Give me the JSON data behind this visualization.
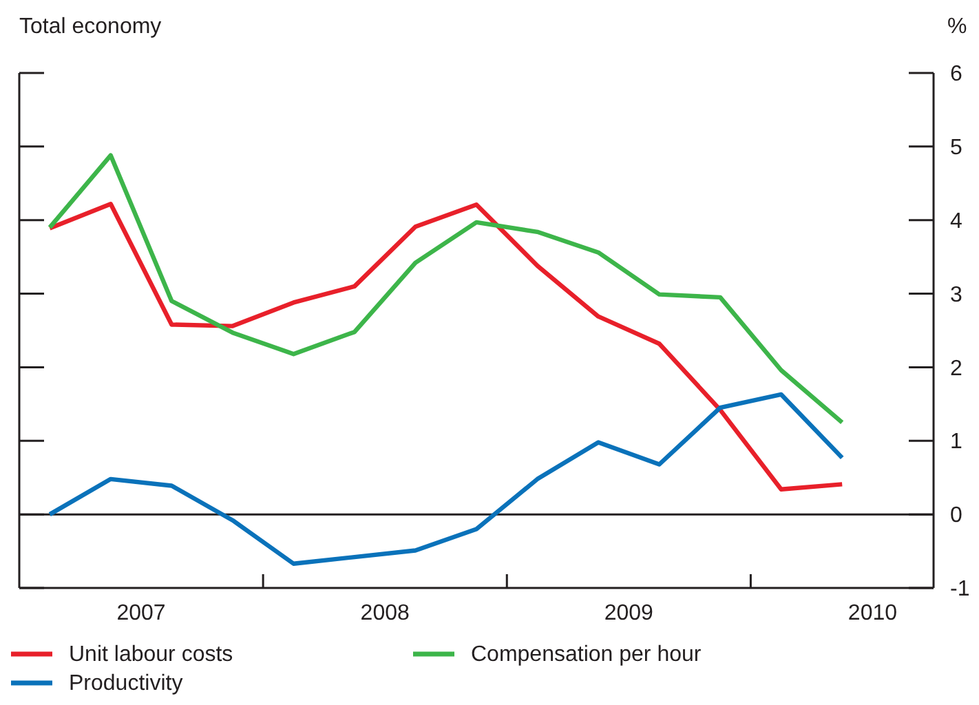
{
  "chart_data": {
    "type": "line",
    "title": "Total economy",
    "ylabel": "%",
    "x": [
      2007.125,
      2007.375,
      2007.625,
      2007.875,
      2008.125,
      2008.375,
      2008.625,
      2008.875,
      2009.125,
      2009.375,
      2009.625,
      2009.875,
      2010.125,
      2010.375
    ],
    "series": [
      {
        "name": "Unit labour costs",
        "color": "#e8202a",
        "values": [
          3.89,
          4.22,
          2.58,
          2.56,
          2.88,
          3.1,
          3.91,
          4.21,
          3.38,
          2.69,
          2.32,
          1.42,
          0.34,
          0.41
        ]
      },
      {
        "name": "Compensation per hour",
        "color": "#3db54a",
        "values": [
          3.9,
          4.88,
          2.9,
          2.47,
          2.18,
          2.48,
          3.42,
          3.97,
          3.84,
          3.56,
          2.99,
          2.95,
          1.96,
          1.25
        ]
      },
      {
        "name": "Productivity",
        "color": "#0a72ba",
        "values": [
          0,
          0.48,
          0.39,
          -0.08,
          -0.67,
          -0.58,
          -0.49,
          -0.2,
          0.48,
          0.98,
          0.68,
          1.45,
          1.63,
          0.77
        ]
      }
    ],
    "xlim": [
      2007,
      2010.75
    ],
    "xticks": [
      {
        "value": 2007.5,
        "label": "2007"
      },
      {
        "value": 2008,
        "label": null
      },
      {
        "value": 2008.5,
        "label": "2008"
      },
      {
        "value": 2009,
        "label": null
      },
      {
        "value": 2009.5,
        "label": "2009"
      },
      {
        "value": 2010,
        "label": null
      },
      {
        "value": 2010.5,
        "label": "2010"
      }
    ],
    "ylim": [
      -1,
      6
    ],
    "yticks": [
      -1,
      0,
      1,
      2,
      3,
      4,
      5,
      6
    ],
    "ref_lines": [
      {
        "axis": "y",
        "value": 0,
        "color": "#231f20"
      }
    ],
    "legend": "bottom",
    "grid": false,
    "marker": "none",
    "line_style": "solid"
  }
}
